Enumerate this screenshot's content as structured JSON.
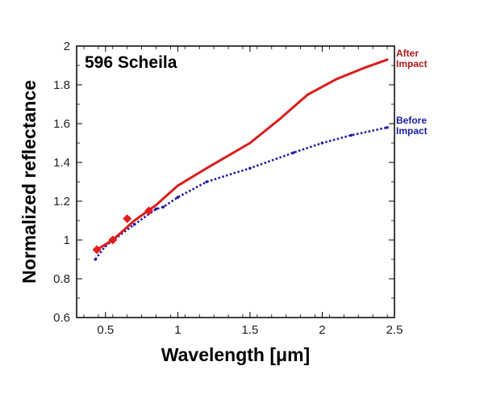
{
  "chart_data": {
    "type": "line",
    "title": "596 Scheila",
    "xlabel": "Wavelength [μm]",
    "ylabel": "Normalized reflectance",
    "xlim": [
      0.3,
      2.5
    ],
    "ylim": [
      0.6,
      2.0
    ],
    "xticks": [
      0.5,
      1,
      1.5,
      2,
      2.5
    ],
    "xtick_labels": [
      "0.5",
      "1",
      "1.5",
      "2",
      "2.5"
    ],
    "yticks": [
      0.6,
      0.8,
      1.0,
      1.2,
      1.4,
      1.6,
      1.8,
      2.0
    ],
    "ytick_labels": [
      "0.6",
      "0.8",
      "1",
      "1.2",
      "1.4",
      "1.6",
      "1.8",
      "2"
    ],
    "grid": false,
    "legend_placement": "right-outside",
    "series": [
      {
        "name": "After Impact",
        "label_lines": [
          "After",
          "Impact"
        ],
        "color": "#d81e1e",
        "label_color": "#b01818",
        "style": "line",
        "x": [
          0.44,
          0.55,
          0.7,
          0.85,
          1.0,
          1.2,
          1.5,
          1.7,
          1.9,
          2.1,
          2.3,
          2.45
        ],
        "y": [
          0.95,
          1.0,
          1.1,
          1.18,
          1.28,
          1.37,
          1.5,
          1.62,
          1.75,
          1.83,
          1.89,
          1.93
        ]
      },
      {
        "name": "Before Impact",
        "label_lines": [
          "Before",
          "Impact"
        ],
        "color": "#1c1ca0",
        "label_color": "#1c1ca0",
        "style": "dotted",
        "x": [
          0.43,
          0.5,
          0.7,
          0.85,
          0.9,
          1.0,
          1.2,
          1.5,
          1.8,
          2.0,
          2.2,
          2.45
        ],
        "y": [
          0.9,
          0.97,
          1.08,
          1.16,
          1.17,
          1.22,
          1.3,
          1.37,
          1.45,
          1.5,
          1.54,
          1.58
        ]
      },
      {
        "name": "After Impact photometry",
        "color": "#e01e1e",
        "style": "diamond",
        "x": [
          0.44,
          0.55,
          0.65,
          0.8
        ],
        "y": [
          0.95,
          1.0,
          1.11,
          1.15
        ]
      }
    ]
  }
}
